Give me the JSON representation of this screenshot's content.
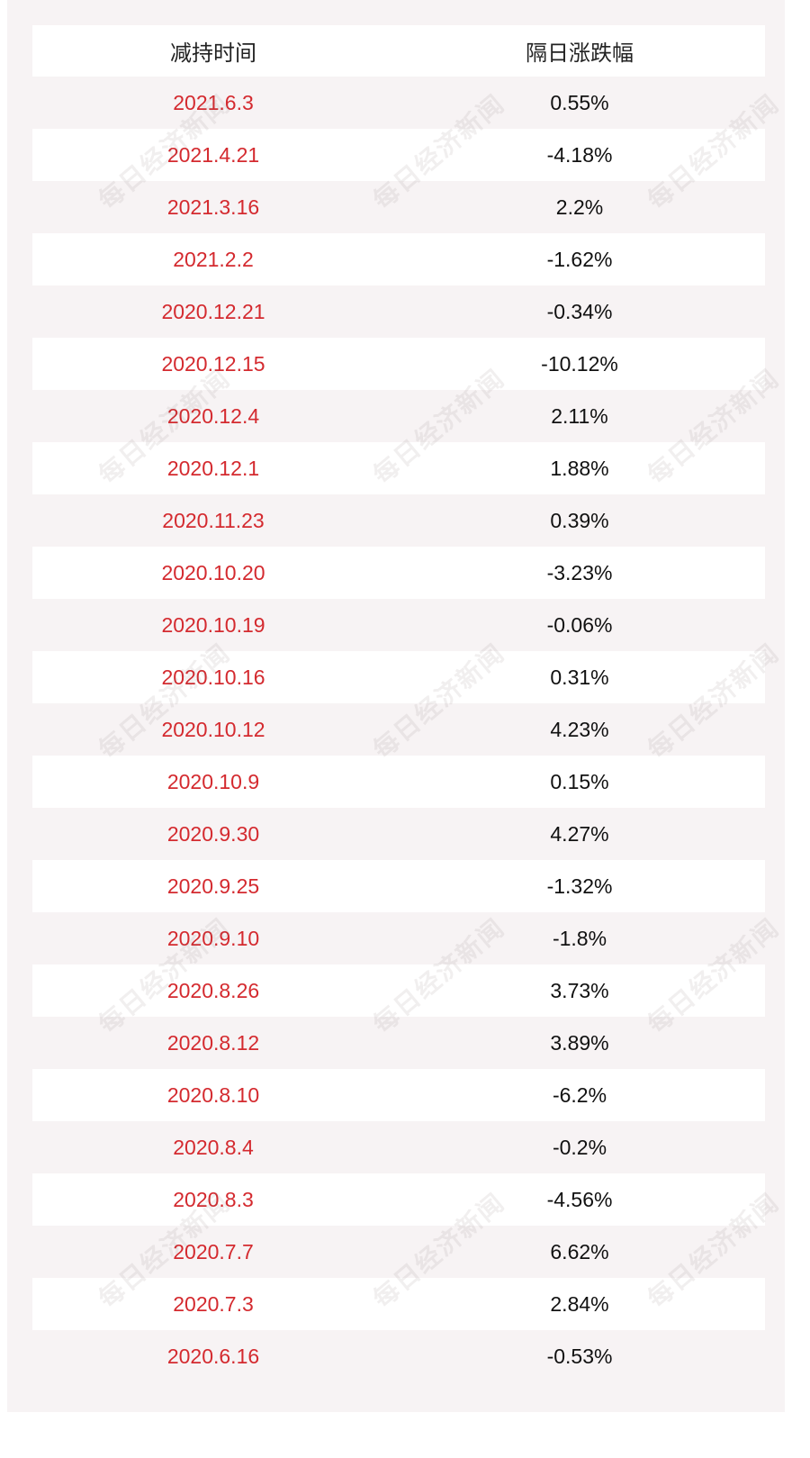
{
  "chart_data": {
    "type": "table",
    "columns": [
      "减持时间",
      "隔日涨跌幅"
    ],
    "rows": [
      [
        "2021.6.3",
        "0.55%"
      ],
      [
        "2021.4.21",
        "-4.18%"
      ],
      [
        "2021.3.16",
        "2.2%"
      ],
      [
        "2021.2.2",
        "-1.62%"
      ],
      [
        "2020.12.21",
        "-0.34%"
      ],
      [
        "2020.12.15",
        "-10.12%"
      ],
      [
        "2020.12.4",
        "2.11%"
      ],
      [
        "2020.12.1",
        "1.88%"
      ],
      [
        "2020.11.23",
        "0.39%"
      ],
      [
        "2020.10.20",
        "-3.23%"
      ],
      [
        "2020.10.19",
        "-0.06%"
      ],
      [
        "2020.10.16",
        "0.31%"
      ],
      [
        "2020.10.12",
        "4.23%"
      ],
      [
        "2020.10.9",
        "0.15%"
      ],
      [
        "2020.9.30",
        "4.27%"
      ],
      [
        "2020.9.25",
        "-1.32%"
      ],
      [
        "2020.9.10",
        "-1.8%"
      ],
      [
        "2020.8.26",
        "3.73%"
      ],
      [
        "2020.8.12",
        "3.89%"
      ],
      [
        "2020.8.10",
        "-6.2%"
      ],
      [
        "2020.8.4",
        "-0.2%"
      ],
      [
        "2020.8.3",
        "-4.56%"
      ],
      [
        "2020.7.7",
        "6.62%"
      ],
      [
        "2020.7.3",
        "2.84%"
      ],
      [
        "2020.6.16",
        "-0.53%"
      ]
    ]
  },
  "watermark": "每日经济新闻",
  "colors": {
    "date_text": "#d42a2f",
    "value_text": "#111111",
    "row_shade": "#ffffff",
    "row_plain": "#f7f3f4"
  }
}
